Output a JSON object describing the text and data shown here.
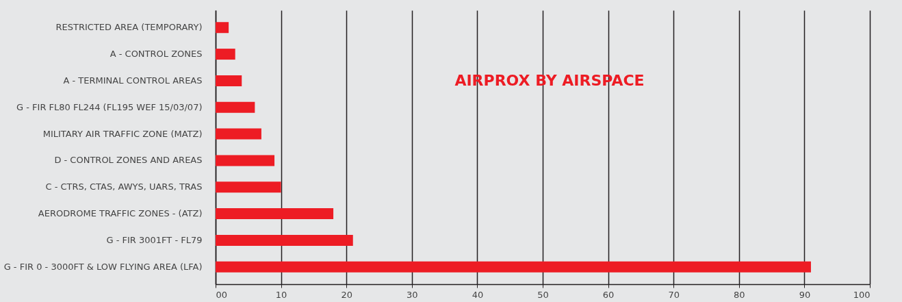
{
  "chart_data": {
    "type": "bar",
    "orientation": "horizontal",
    "title": "AIRPROX BY AIRSPACE",
    "categories": [
      "RESTRICTED AREA (TEMPORARY)",
      "A - CONTROL ZONES",
      "A - TERMINAL CONTROL AREAS",
      "G - FIR FL80 FL244 (FL195 WEF 15/03/07)",
      "MILITARY AIR TRAFFIC ZONE (MATZ)",
      "D - CONTROL ZONES AND AREAS",
      "C - CTRS, CTAS, AWYS, UARS, TRAS",
      "AERODROME TRAFFIC ZONES - (ATZ)",
      "G - FIR 3001FT - FL79",
      "G - FIR 0 - 3000FT & LOW FLYING AREA (LFA)"
    ],
    "values": [
      2,
      3,
      4,
      6,
      7,
      9,
      10,
      18,
      21,
      91
    ],
    "color": "#ed1c24",
    "xlim": [
      0,
      100
    ],
    "xticks": [
      {
        "value": 0,
        "label": "00"
      },
      10,
      20,
      30,
      40,
      50,
      60,
      70,
      80,
      90,
      100
    ],
    "grid": "x"
  }
}
